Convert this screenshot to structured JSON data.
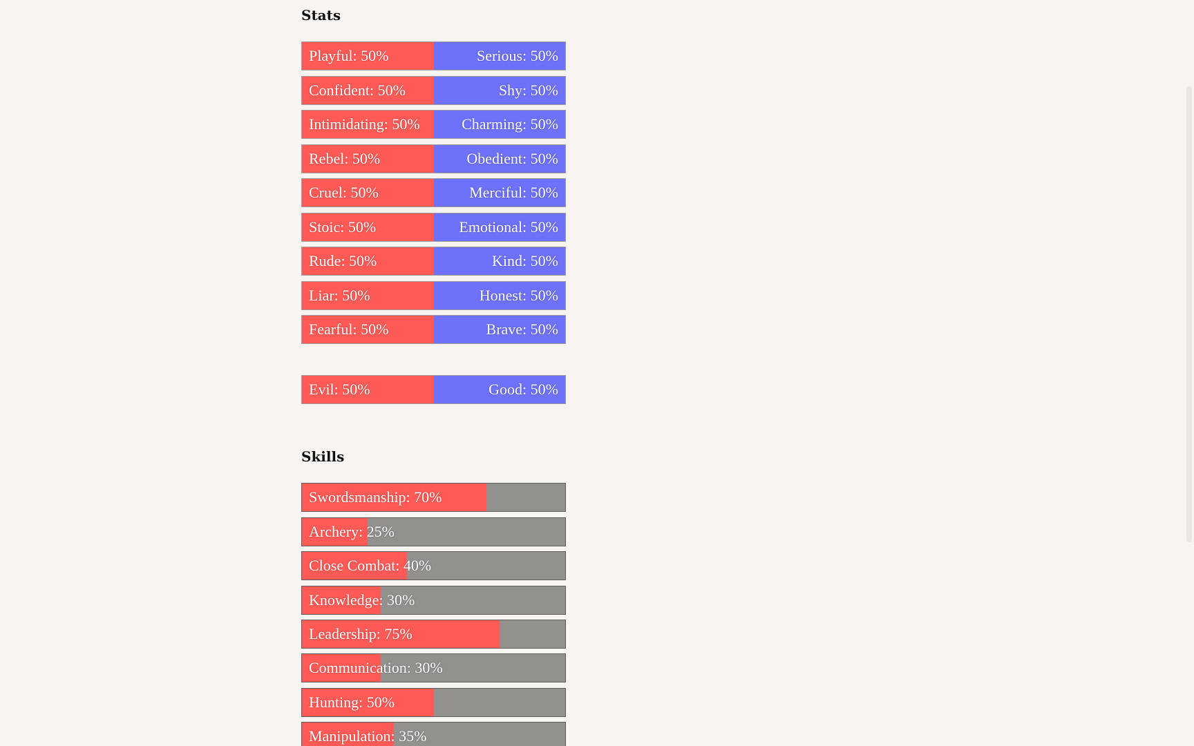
{
  "stats": {
    "title": "Stats",
    "colors": {
      "left": "#ff5a56",
      "right": "#6e72fb"
    },
    "pairs": [
      {
        "left": "Playful: 50%",
        "right": "Serious: 50%",
        "value": 0.5
      },
      {
        "left": "Confident: 50%",
        "right": "Shy: 50%",
        "value": 0.5
      },
      {
        "left": "Intimidating: 50%",
        "right": "Charming: 50%",
        "value": 0.5
      },
      {
        "left": "Rebel: 50%",
        "right": "Obedient: 50%",
        "value": 0.5
      },
      {
        "left": "Cruel: 50%",
        "right": "Merciful: 50%",
        "value": 0.5
      },
      {
        "left": "Stoic: 50%",
        "right": "Emotional: 50%",
        "value": 0.5
      },
      {
        "left": "Rude: 50%",
        "right": "Kind: 50%",
        "value": 0.5
      },
      {
        "left": "Liar: 50%",
        "right": "Honest: 50%",
        "value": 0.5
      },
      {
        "left": "Fearful: 50%",
        "right": "Brave: 50%",
        "value": 0.5
      }
    ],
    "alignment": {
      "left": "Evil: 50%",
      "right": "Good: 50%",
      "value": 0.5
    }
  },
  "skills": {
    "title": "Skills",
    "colors": {
      "fill": "#ff5a56",
      "track": "#93918e"
    },
    "items": [
      {
        "label": "Swordsmanship: 70%",
        "value": 0.7
      },
      {
        "label": "Archery: 25%",
        "value": 0.25
      },
      {
        "label": "Close Combat: 40%",
        "value": 0.4
      },
      {
        "label": "Knowledge: 30%",
        "value": 0.3
      },
      {
        "label": "Leadership: 75%",
        "value": 0.75
      },
      {
        "label": "Communication: 30%",
        "value": 0.3
      },
      {
        "label": "Hunting: 50%",
        "value": 0.5
      },
      {
        "label": "Manipulation: 35%",
        "value": 0.35
      }
    ]
  }
}
